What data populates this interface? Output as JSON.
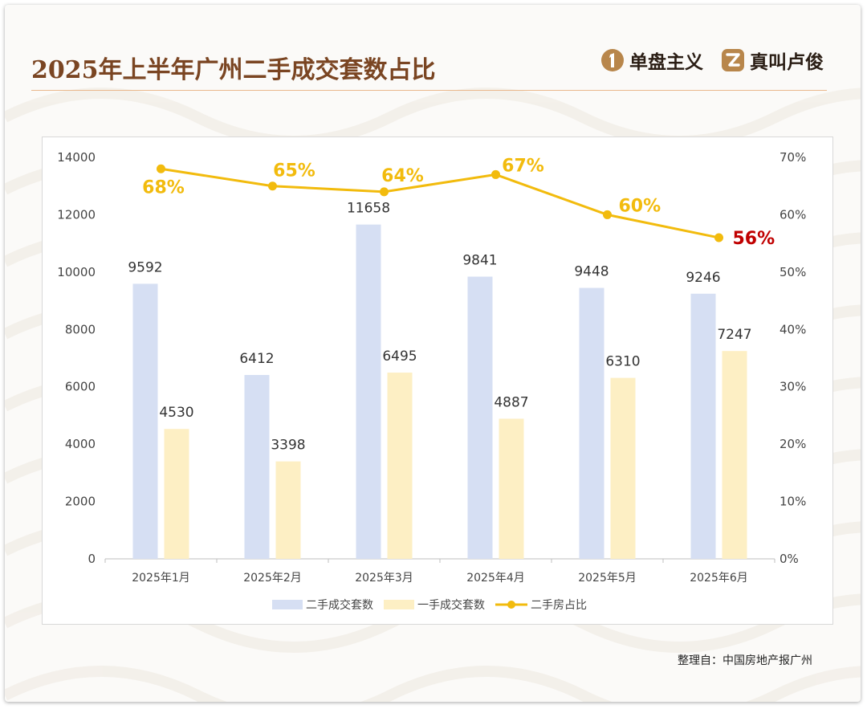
{
  "header": {
    "title": "2025年上半年广州二手成交套数占比",
    "brands": [
      {
        "name": "单盘主义",
        "icon": "number-one-logo-icon"
      },
      {
        "name": "真叫卢俊",
        "icon": "z-letter-logo-icon"
      }
    ]
  },
  "footer": {
    "source": "整理自：中国房地产报广州"
  },
  "colors": {
    "title": "#7a4522",
    "bar_secondhand": "#d6dff3",
    "bar_newhome": "#fdefc4",
    "line": "#f2bb0d",
    "line_label": "#f2bb0d",
    "highlight_label": "#c00000",
    "accent_rule": "#e9b88c"
  },
  "chart_data": {
    "type": "bar",
    "title": "2025年上半年广州二手成交套数占比",
    "categories": [
      "2025年1月",
      "2025年2月",
      "2025年3月",
      "2025年4月",
      "2025年5月",
      "2025年6月"
    ],
    "series": [
      {
        "name": "二手成交套数",
        "type": "bar",
        "axis": "left",
        "values": [
          9592,
          6412,
          11658,
          9841,
          9448,
          9246
        ],
        "labels": [
          "9592",
          "6412",
          "11658",
          "9841",
          "9448",
          "9246"
        ]
      },
      {
        "name": "一手成交套数",
        "type": "bar",
        "axis": "left",
        "values": [
          4530,
          3398,
          6495,
          4887,
          6310,
          7247
        ],
        "labels": [
          "4530",
          "3398",
          "6495",
          "4887",
          "6310",
          "7247"
        ]
      },
      {
        "name": "二手房占比",
        "type": "line",
        "axis": "right",
        "values": [
          68,
          65,
          64,
          67,
          60,
          56
        ],
        "labels": [
          "68%",
          "65%",
          "64%",
          "67%",
          "60%",
          "56%"
        ],
        "highlight_index": 5
      }
    ],
    "y_left": {
      "min": 0,
      "max": 14000,
      "ticks": [
        "0",
        "2000",
        "4000",
        "6000",
        "8000",
        "10000",
        "12000",
        "14000"
      ]
    },
    "y_right": {
      "min": 0,
      "max": 70,
      "ticks": [
        "0%",
        "10%",
        "20%",
        "30%",
        "40%",
        "50%",
        "60%",
        "70%"
      ]
    },
    "grid": false,
    "legend": "bottom"
  }
}
